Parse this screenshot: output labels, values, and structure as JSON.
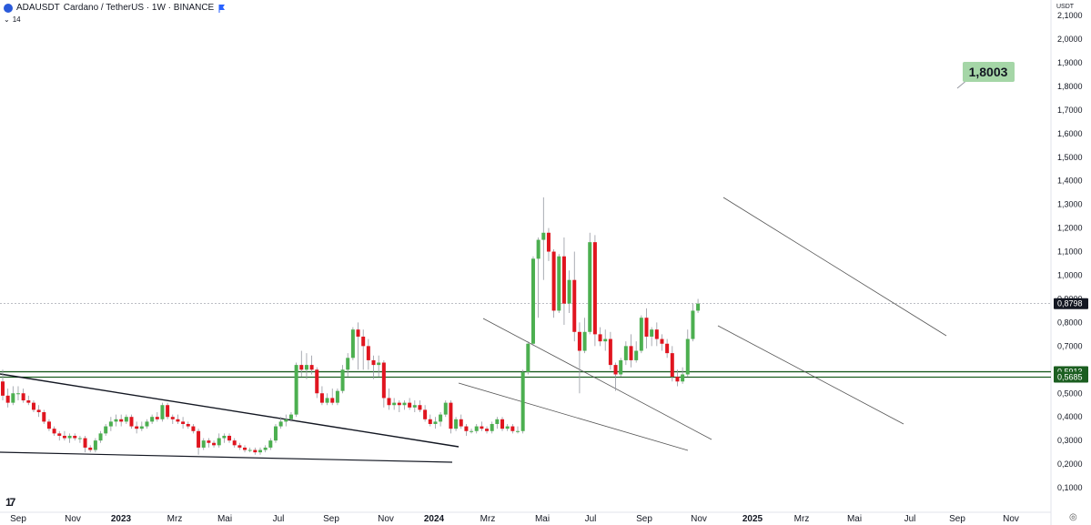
{
  "header": {
    "symbol": "ADAUSDT",
    "description": "Cardano / TetherUS · 1W · BINANCE",
    "indicator": "14",
    "chevron_icon": "chevron-down-icon",
    "symbol_icon": "cardano-coin-icon",
    "exchange_icon": "binance-flag-icon"
  },
  "colors": {
    "up": "#4caf50",
    "down": "#e0151f",
    "support": "#1b5e20",
    "label_bg": "#a5d6a7"
  },
  "price_scale": {
    "currency": "USDT",
    "ticks": [
      "2,1000",
      "2,0000",
      "1,9000",
      "1,8000",
      "1,7000",
      "1,6000",
      "1,5000",
      "1,4000",
      "1,3000",
      "1,2000",
      "1,1000",
      "1,0000",
      "0,9000",
      "0,8000",
      "0,7000",
      "0,6000",
      "0,5000",
      "0,4000",
      "0,3000",
      "0,2000",
      "0,1000"
    ]
  },
  "time_scale": [
    "Sep",
    "Nov",
    "2023",
    "Mrz",
    "Mai",
    "Jul",
    "Sep",
    "Nov",
    "2024",
    "Mrz",
    "Mai",
    "Jul",
    "Sep",
    "Nov",
    "2025",
    "Mrz",
    "Mai",
    "Jul",
    "Sep",
    "Nov"
  ],
  "chart_data": {
    "type": "candlestick",
    "symbol": "ADAUSDT",
    "interval": "1W",
    "current_price": "0,8798",
    "target_annotation": "1,8003",
    "support_levels": [
      {
        "value": 0.5913,
        "label": "0,5913"
      },
      {
        "value": 0.5685,
        "label": "0,5685"
      }
    ],
    "ylim": [
      0.0,
      2.15
    ],
    "grid": false,
    "candles": [
      [
        0.55,
        0.6,
        0.47,
        0.49
      ],
      [
        0.49,
        0.52,
        0.44,
        0.46
      ],
      [
        0.46,
        0.53,
        0.45,
        0.5
      ],
      [
        0.5,
        0.53,
        0.47,
        0.5
      ],
      [
        0.5,
        0.52,
        0.46,
        0.47
      ],
      [
        0.47,
        0.49,
        0.45,
        0.46
      ],
      [
        0.46,
        0.47,
        0.42,
        0.43
      ],
      [
        0.43,
        0.45,
        0.4,
        0.42
      ],
      [
        0.42,
        0.43,
        0.37,
        0.38
      ],
      [
        0.38,
        0.39,
        0.34,
        0.35
      ],
      [
        0.35,
        0.36,
        0.32,
        0.33
      ],
      [
        0.33,
        0.34,
        0.3,
        0.32
      ],
      [
        0.32,
        0.34,
        0.3,
        0.31
      ],
      [
        0.31,
        0.33,
        0.29,
        0.32
      ],
      [
        0.32,
        0.33,
        0.3,
        0.31
      ],
      [
        0.31,
        0.32,
        0.29,
        0.31
      ],
      [
        0.31,
        0.32,
        0.25,
        0.27
      ],
      [
        0.27,
        0.28,
        0.25,
        0.26
      ],
      [
        0.26,
        0.31,
        0.25,
        0.3
      ],
      [
        0.3,
        0.34,
        0.29,
        0.33
      ],
      [
        0.33,
        0.37,
        0.32,
        0.36
      ],
      [
        0.36,
        0.4,
        0.34,
        0.38
      ],
      [
        0.38,
        0.41,
        0.36,
        0.39
      ],
      [
        0.39,
        0.41,
        0.36,
        0.38
      ],
      [
        0.38,
        0.41,
        0.37,
        0.4
      ],
      [
        0.4,
        0.41,
        0.35,
        0.36
      ],
      [
        0.36,
        0.38,
        0.33,
        0.35
      ],
      [
        0.35,
        0.38,
        0.34,
        0.36
      ],
      [
        0.36,
        0.39,
        0.35,
        0.38
      ],
      [
        0.38,
        0.41,
        0.37,
        0.4
      ],
      [
        0.4,
        0.42,
        0.38,
        0.39
      ],
      [
        0.39,
        0.46,
        0.38,
        0.45
      ],
      [
        0.45,
        0.46,
        0.39,
        0.4
      ],
      [
        0.4,
        0.41,
        0.37,
        0.39
      ],
      [
        0.39,
        0.41,
        0.37,
        0.38
      ],
      [
        0.38,
        0.4,
        0.35,
        0.37
      ],
      [
        0.37,
        0.38,
        0.35,
        0.36
      ],
      [
        0.36,
        0.37,
        0.33,
        0.34
      ],
      [
        0.34,
        0.35,
        0.24,
        0.27
      ],
      [
        0.27,
        0.31,
        0.26,
        0.3
      ],
      [
        0.3,
        0.31,
        0.27,
        0.29
      ],
      [
        0.29,
        0.3,
        0.27,
        0.28
      ],
      [
        0.28,
        0.33,
        0.27,
        0.31
      ],
      [
        0.31,
        0.33,
        0.29,
        0.32
      ],
      [
        0.32,
        0.33,
        0.29,
        0.3
      ],
      [
        0.3,
        0.31,
        0.27,
        0.28
      ],
      [
        0.28,
        0.29,
        0.26,
        0.27
      ],
      [
        0.27,
        0.28,
        0.25,
        0.26
      ],
      [
        0.26,
        0.27,
        0.25,
        0.26
      ],
      [
        0.26,
        0.27,
        0.24,
        0.25
      ],
      [
        0.25,
        0.27,
        0.24,
        0.26
      ],
      [
        0.26,
        0.28,
        0.25,
        0.27
      ],
      [
        0.27,
        0.31,
        0.26,
        0.3
      ],
      [
        0.3,
        0.37,
        0.29,
        0.36
      ],
      [
        0.36,
        0.4,
        0.35,
        0.38
      ],
      [
        0.38,
        0.41,
        0.36,
        0.39
      ],
      [
        0.39,
        0.42,
        0.38,
        0.41
      ],
      [
        0.41,
        0.63,
        0.4,
        0.62
      ],
      [
        0.62,
        0.68,
        0.57,
        0.6
      ],
      [
        0.6,
        0.67,
        0.56,
        0.62
      ],
      [
        0.62,
        0.66,
        0.58,
        0.6
      ],
      [
        0.6,
        0.61,
        0.48,
        0.5
      ],
      [
        0.5,
        0.53,
        0.45,
        0.46
      ],
      [
        0.46,
        0.5,
        0.45,
        0.48
      ],
      [
        0.48,
        0.52,
        0.45,
        0.46
      ],
      [
        0.46,
        0.52,
        0.45,
        0.51
      ],
      [
        0.51,
        0.62,
        0.5,
        0.6
      ],
      [
        0.6,
        0.67,
        0.57,
        0.65
      ],
      [
        0.65,
        0.78,
        0.64,
        0.77
      ],
      [
        0.77,
        0.8,
        0.6,
        0.74
      ],
      [
        0.74,
        0.77,
        0.6,
        0.7
      ],
      [
        0.7,
        0.73,
        0.6,
        0.64
      ],
      [
        0.64,
        0.66,
        0.56,
        0.62
      ],
      [
        0.62,
        0.66,
        0.57,
        0.63
      ],
      [
        0.63,
        0.64,
        0.44,
        0.48
      ],
      [
        0.48,
        0.52,
        0.43,
        0.45
      ],
      [
        0.45,
        0.48,
        0.43,
        0.46
      ],
      [
        0.46,
        0.47,
        0.42,
        0.45
      ],
      [
        0.45,
        0.47,
        0.43,
        0.46
      ],
      [
        0.46,
        0.48,
        0.43,
        0.44
      ],
      [
        0.44,
        0.47,
        0.42,
        0.45
      ],
      [
        0.45,
        0.47,
        0.42,
        0.43
      ],
      [
        0.43,
        0.45,
        0.38,
        0.39
      ],
      [
        0.39,
        0.41,
        0.36,
        0.37
      ],
      [
        0.37,
        0.4,
        0.35,
        0.38
      ],
      [
        0.38,
        0.42,
        0.36,
        0.41
      ],
      [
        0.41,
        0.47,
        0.4,
        0.46
      ],
      [
        0.46,
        0.47,
        0.33,
        0.35
      ],
      [
        0.35,
        0.4,
        0.34,
        0.39
      ],
      [
        0.39,
        0.41,
        0.35,
        0.36
      ],
      [
        0.36,
        0.37,
        0.32,
        0.34
      ],
      [
        0.34,
        0.35,
        0.33,
        0.34
      ],
      [
        0.34,
        0.37,
        0.33,
        0.36
      ],
      [
        0.36,
        0.38,
        0.34,
        0.35
      ],
      [
        0.35,
        0.36,
        0.33,
        0.34
      ],
      [
        0.34,
        0.38,
        0.33,
        0.37
      ],
      [
        0.37,
        0.4,
        0.35,
        0.39
      ],
      [
        0.39,
        0.4,
        0.34,
        0.35
      ],
      [
        0.35,
        0.37,
        0.34,
        0.36
      ],
      [
        0.36,
        0.37,
        0.33,
        0.34
      ],
      [
        0.34,
        0.36,
        0.33,
        0.34
      ],
      [
        0.34,
        0.6,
        0.33,
        0.59
      ],
      [
        0.59,
        0.72,
        0.58,
        0.71
      ],
      [
        0.71,
        1.08,
        0.7,
        1.07
      ],
      [
        1.07,
        1.16,
        0.82,
        1.15
      ],
      [
        1.15,
        1.33,
        0.98,
        1.18
      ],
      [
        1.18,
        1.2,
        1.06,
        1.1
      ],
      [
        1.1,
        1.11,
        0.82,
        0.85
      ],
      [
        0.85,
        1.09,
        0.84,
        1.08
      ],
      [
        1.08,
        1.16,
        0.79,
        0.88
      ],
      [
        0.88,
        1.02,
        0.84,
        0.98
      ],
      [
        0.98,
        1.1,
        0.72,
        0.76
      ],
      [
        0.76,
        0.8,
        0.5,
        0.68
      ],
      [
        0.68,
        0.82,
        0.67,
        0.76
      ],
      [
        0.76,
        1.18,
        0.75,
        1.14
      ],
      [
        1.14,
        1.17,
        0.7,
        0.75
      ],
      [
        0.75,
        0.78,
        0.7,
        0.72
      ],
      [
        0.72,
        0.77,
        0.68,
        0.73
      ],
      [
        0.73,
        0.76,
        0.6,
        0.62
      ],
      [
        0.62,
        0.63,
        0.51,
        0.58
      ],
      [
        0.58,
        0.65,
        0.57,
        0.64
      ],
      [
        0.64,
        0.72,
        0.62,
        0.7
      ],
      [
        0.7,
        0.75,
        0.61,
        0.64
      ],
      [
        0.64,
        0.72,
        0.63,
        0.68
      ],
      [
        0.68,
        0.83,
        0.67,
        0.82
      ],
      [
        0.82,
        0.86,
        0.69,
        0.74
      ],
      [
        0.74,
        0.78,
        0.7,
        0.77
      ],
      [
        0.77,
        0.8,
        0.7,
        0.73
      ],
      [
        0.73,
        0.75,
        0.68,
        0.71
      ],
      [
        0.71,
        0.73,
        0.65,
        0.67
      ],
      [
        0.67,
        0.7,
        0.55,
        0.57
      ],
      [
        0.57,
        0.6,
        0.53,
        0.55
      ],
      [
        0.55,
        0.61,
        0.54,
        0.58
      ],
      [
        0.58,
        0.77,
        0.57,
        0.73
      ],
      [
        0.73,
        0.88,
        0.72,
        0.85
      ],
      [
        0.85,
        0.9,
        0.84,
        0.8798
      ]
    ]
  }
}
